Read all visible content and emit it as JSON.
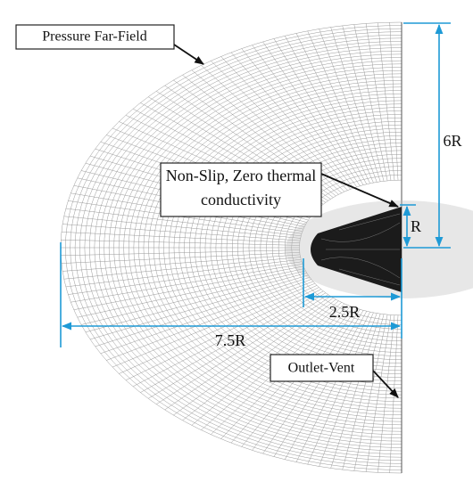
{
  "labels": {
    "far_field": "Pressure Far-Field",
    "wall": [
      "Non-Slip, Zero thermal",
      "conductivity"
    ],
    "outlet": "Outlet-Vent"
  },
  "dimensions": {
    "height": "6R",
    "radius": "R",
    "body_length": "2.5R",
    "domain_length": "7.5R"
  }
}
